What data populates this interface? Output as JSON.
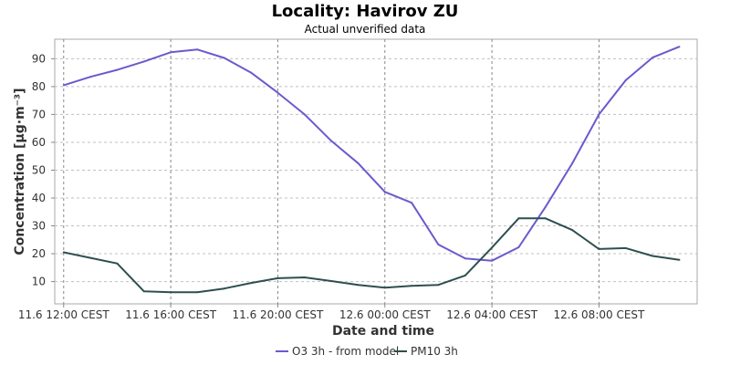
{
  "chart_data": {
    "type": "line",
    "title": "Locality: Havirov ZU",
    "subtitle": "Actual unverified data",
    "xlabel": "Date and time",
    "ylabel": "Concentration [µg·m⁻³]",
    "ylim": [
      2,
      97
    ],
    "yticks": [
      10,
      20,
      30,
      40,
      50,
      60,
      70,
      80,
      90
    ],
    "xlim": [
      "11.6 11:40",
      "12.6 11:40"
    ],
    "xticks": [
      {
        "time": "11.6 12:00",
        "label": "11.6 12:00 CEST"
      },
      {
        "time": "11.6 16:00",
        "label": "11.6 16:00 CEST"
      },
      {
        "time": "11.6 20:00",
        "label": "11.6 20:00 CEST"
      },
      {
        "time": "12.6 00:00",
        "label": "12.6 00:00 CEST"
      },
      {
        "time": "12.6 04:00",
        "label": "12.6 04:00 CEST"
      },
      {
        "time": "12.6 08:00",
        "label": "12.6 08:00 CEST"
      }
    ],
    "grid": true,
    "legend_position": "bottom",
    "x": [
      "11.6 12:00",
      "11.6 13:00",
      "11.6 14:00",
      "11.6 15:00",
      "11.6 16:00",
      "11.6 17:00",
      "11.6 18:00",
      "11.6 19:00",
      "11.6 20:00",
      "11.6 21:00",
      "11.6 22:00",
      "11.6 23:00",
      "12.6 00:00",
      "12.6 01:00",
      "12.6 02:00",
      "12.6 03:00",
      "12.6 04:00",
      "12.6 05:00",
      "12.6 06:00",
      "12.6 07:00",
      "12.6 08:00",
      "12.6 09:00",
      "12.6 10:00",
      "12.6 11:00"
    ],
    "series": [
      {
        "name": "O3 3h - from model",
        "color": "#6a5acd",
        "values": [
          80.5,
          83.5,
          86,
          89,
          92.3,
          93.3,
          90.3,
          85,
          77.8,
          70,
          60.5,
          52.5,
          42.2,
          38.3,
          23.3,
          18.3,
          17.5,
          22.3,
          36.8,
          52.4,
          70,
          82.3,
          90.4,
          94.3
        ]
      },
      {
        "name": "PM10 3h",
        "color": "#2f4f4f",
        "values": [
          20.5,
          18.5,
          16.5,
          6.5,
          6.2,
          6.2,
          7.5,
          9.5,
          11.2,
          11.5,
          10.2,
          8.8,
          7.8,
          8.5,
          8.8,
          12.2,
          22.2,
          32.7,
          32.7,
          28.5,
          21.7,
          22,
          19.2,
          17.8
        ]
      }
    ]
  }
}
